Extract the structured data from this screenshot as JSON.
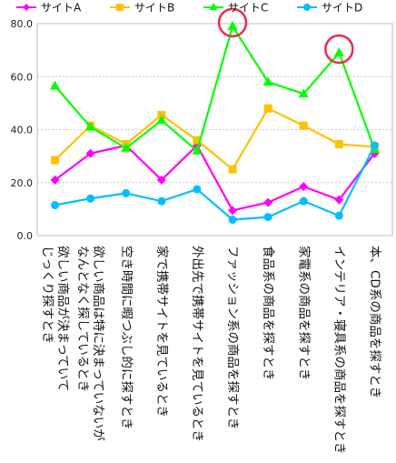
{
  "chart_data": {
    "type": "line",
    "ylim": [
      0,
      80
    ],
    "yticks": [
      "0.0",
      "20.0",
      "40.0",
      "60.0",
      "80.0"
    ],
    "categories": [
      [
        "欲しい商品が決まっていて",
        "じっくり探すとき"
      ],
      [
        "欲しい商品は特に決まっていないが",
        "なんとなく探しているとき"
      ],
      [
        "空き時間に暇つぶし的に探すとき"
      ],
      [
        "家で携帯サイトを見ているとき"
      ],
      [
        "外出先で携帯サイトを見ているとき"
      ],
      [
        "ファッション系の商品を探すとき"
      ],
      [
        "食品系の商品を探すとき"
      ],
      [
        "家電系の商品を探すとき"
      ],
      [
        "インテリア・寝具系の商品を探すとき"
      ],
      [
        "本、CD系の商品を探すとき"
      ]
    ],
    "series": [
      {
        "name": "サイトA",
        "color": "#ff00ff",
        "marker": "diamond",
        "values": [
          21,
          31,
          34,
          21,
          34,
          9.5,
          12.5,
          18.5,
          13.5,
          31
        ]
      },
      {
        "name": "サイトB",
        "color": "#ffc000",
        "marker": "square",
        "values": [
          28.5,
          41.5,
          34.5,
          45.5,
          36,
          25,
          48,
          41.5,
          34.5,
          33.5
        ]
      },
      {
        "name": "サイトC",
        "color": "#00ff00",
        "marker": "triangle",
        "values": [
          56.5,
          41,
          33,
          43.5,
          32,
          79,
          58,
          53.5,
          69,
          32.5
        ]
      },
      {
        "name": "サイトD",
        "color": "#00bfff",
        "marker": "circle",
        "values": [
          11.5,
          14,
          16,
          13,
          17.5,
          6,
          7,
          13,
          7.5,
          34
        ]
      }
    ],
    "highlights": [
      {
        "category_index": 5,
        "color": "#e8304a"
      },
      {
        "category_index": 8,
        "color": "#e8304a"
      }
    ],
    "grid": true,
    "legend_position": "top"
  }
}
